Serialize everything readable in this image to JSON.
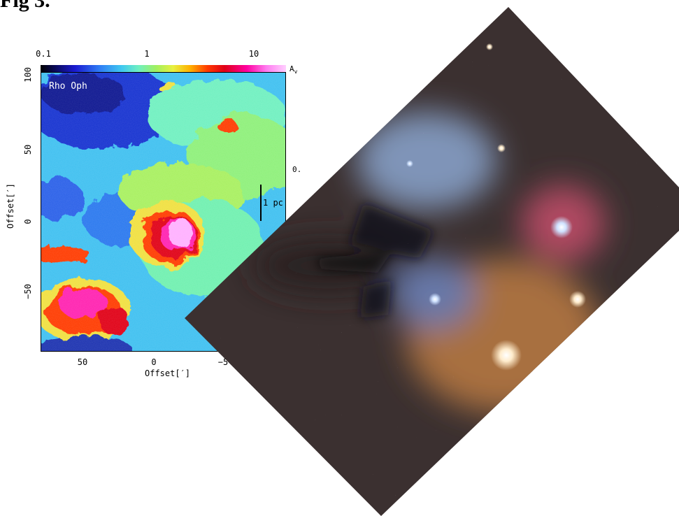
{
  "figure": {
    "title": "Fig 3."
  },
  "colorbar": {
    "ticks": [
      "0.1",
      "1",
      "10"
    ],
    "unit": "A",
    "unit_sub": "v"
  },
  "map": {
    "region_label": "Rho Oph",
    "scale_label": "1 pc",
    "y_axis": {
      "title": "Offset[′]",
      "ticks": [
        "100",
        "50",
        "0",
        "−50"
      ]
    },
    "x_axis": {
      "title": "Offset[′]",
      "ticks": [
        "50",
        "0",
        "−5"
      ]
    },
    "side_tick": "0."
  },
  "photo": {
    "subject": "Rho Ophiuchi cloud complex astrophotograph"
  }
}
